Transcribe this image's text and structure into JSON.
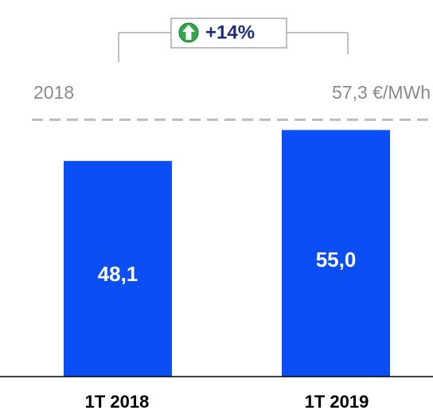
{
  "chart_data": {
    "type": "bar",
    "categories": [
      "1T 2018",
      "1T 2019"
    ],
    "values": [
      48.1,
      55.0
    ],
    "value_labels": [
      "48,1",
      "55,0"
    ],
    "color": "#0b4ef4",
    "ylim": [
      0,
      84
    ],
    "reference_line": {
      "value": 57.3,
      "label": "57,3 €/MWh",
      "period_label": "2018",
      "color": "#bdbdbd"
    },
    "annotation": {
      "label": "+14%",
      "color": "#1f2d7a"
    }
  }
}
